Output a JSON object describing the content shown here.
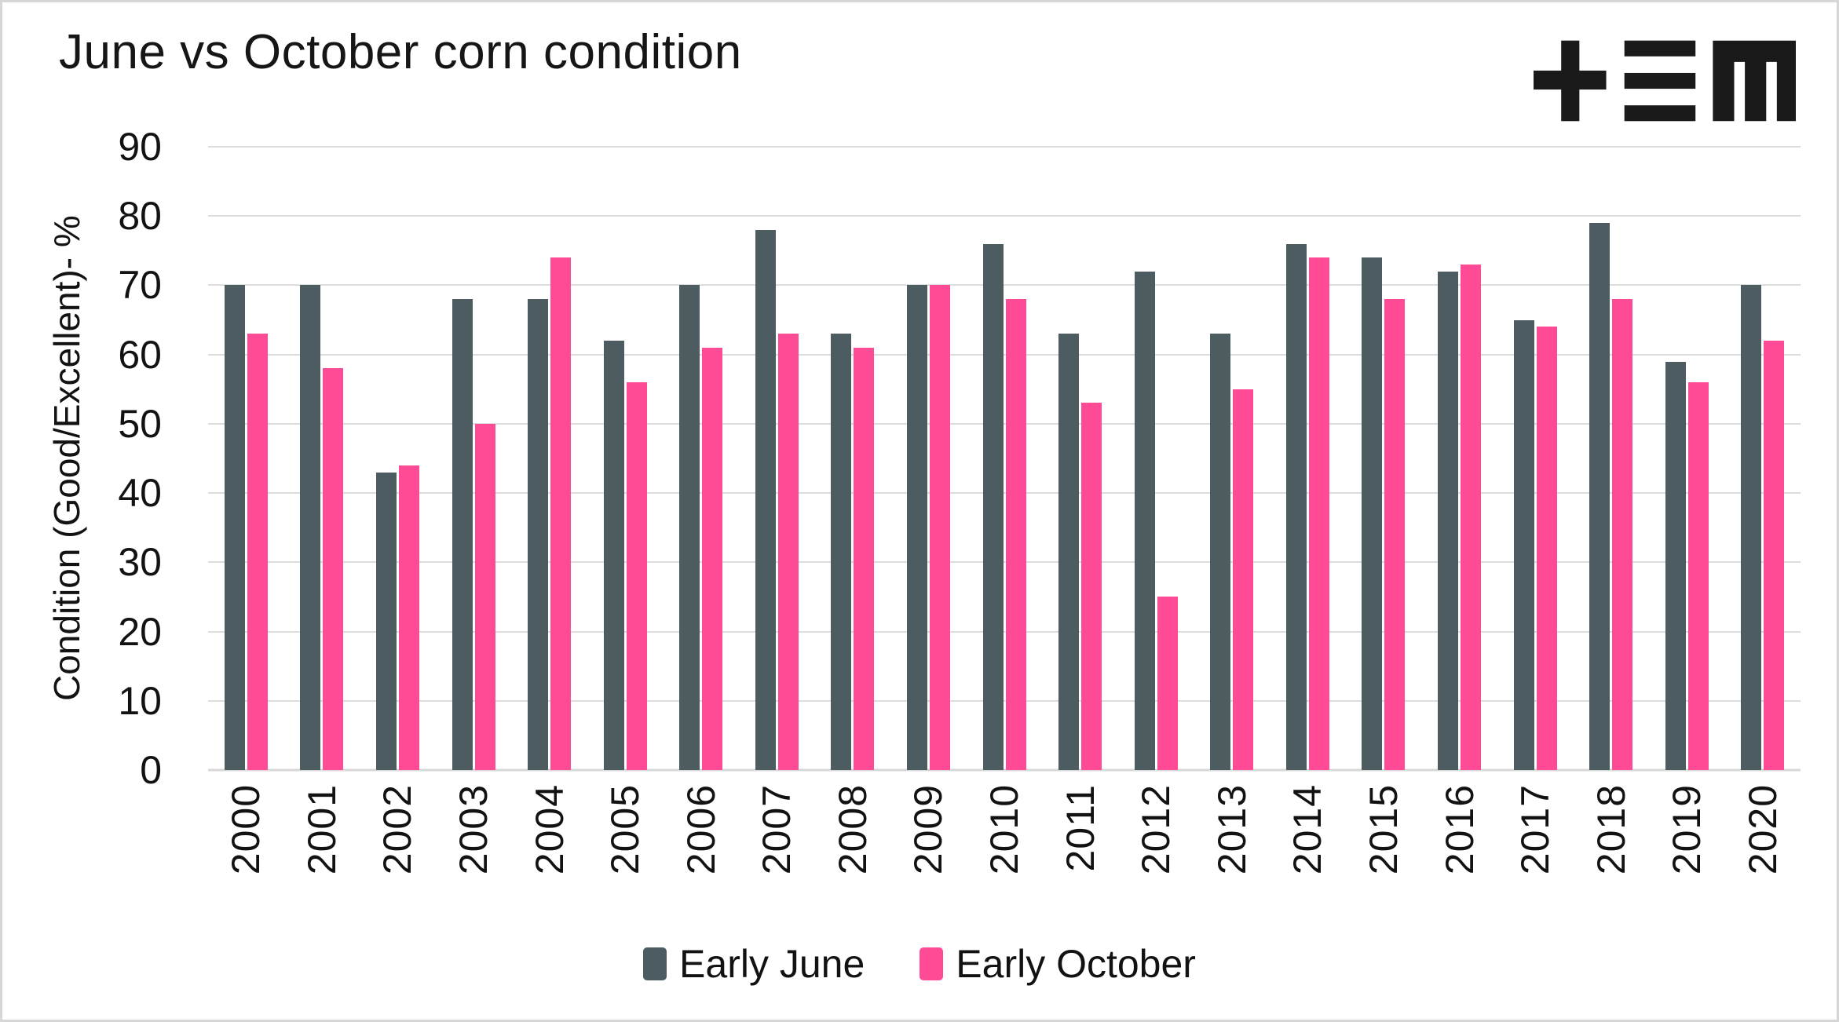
{
  "page": {
    "title": "June vs October corn condition",
    "logo": "tem-logo"
  },
  "chart_data": {
    "type": "bar",
    "title": "June vs October corn condition",
    "xlabel": "",
    "ylabel": "Condition (Good/Excellent)- %",
    "ylim": [
      0,
      90
    ],
    "ytick_step": 10,
    "ytick_labels": [
      "0",
      "10",
      "20",
      "30",
      "40",
      "50",
      "60",
      "70",
      "80",
      "90"
    ],
    "grid": "horizontal",
    "legend_position": "bottom-center",
    "categories": [
      "2000",
      "2001",
      "2002",
      "2003",
      "2004",
      "2005",
      "2006",
      "2007",
      "2008",
      "2009",
      "2010",
      "2011",
      "2012",
      "2013",
      "2014",
      "2015",
      "2016",
      "2017",
      "2018",
      "2019",
      "2020"
    ],
    "series": [
      {
        "name": "Early June",
        "color": "#4D5C61",
        "values": [
          70,
          70,
          43,
          68,
          68,
          62,
          70,
          78,
          63,
          70,
          76,
          63,
          72,
          63,
          76,
          74,
          72,
          65,
          79,
          59,
          70
        ]
      },
      {
        "name": "Early October",
        "color": "#FF4A95",
        "values": [
          63,
          58,
          44,
          50,
          74,
          56,
          61,
          63,
          61,
          70,
          68,
          53,
          25,
          55,
          74,
          68,
          73,
          64,
          68,
          56,
          62
        ]
      }
    ]
  },
  "colors": {
    "grid": "#DCDCDC",
    "baseline": "#D7D7D7",
    "axis_text": "#121212",
    "border": "#D6D6D6",
    "logo": "#1A1A1A"
  }
}
